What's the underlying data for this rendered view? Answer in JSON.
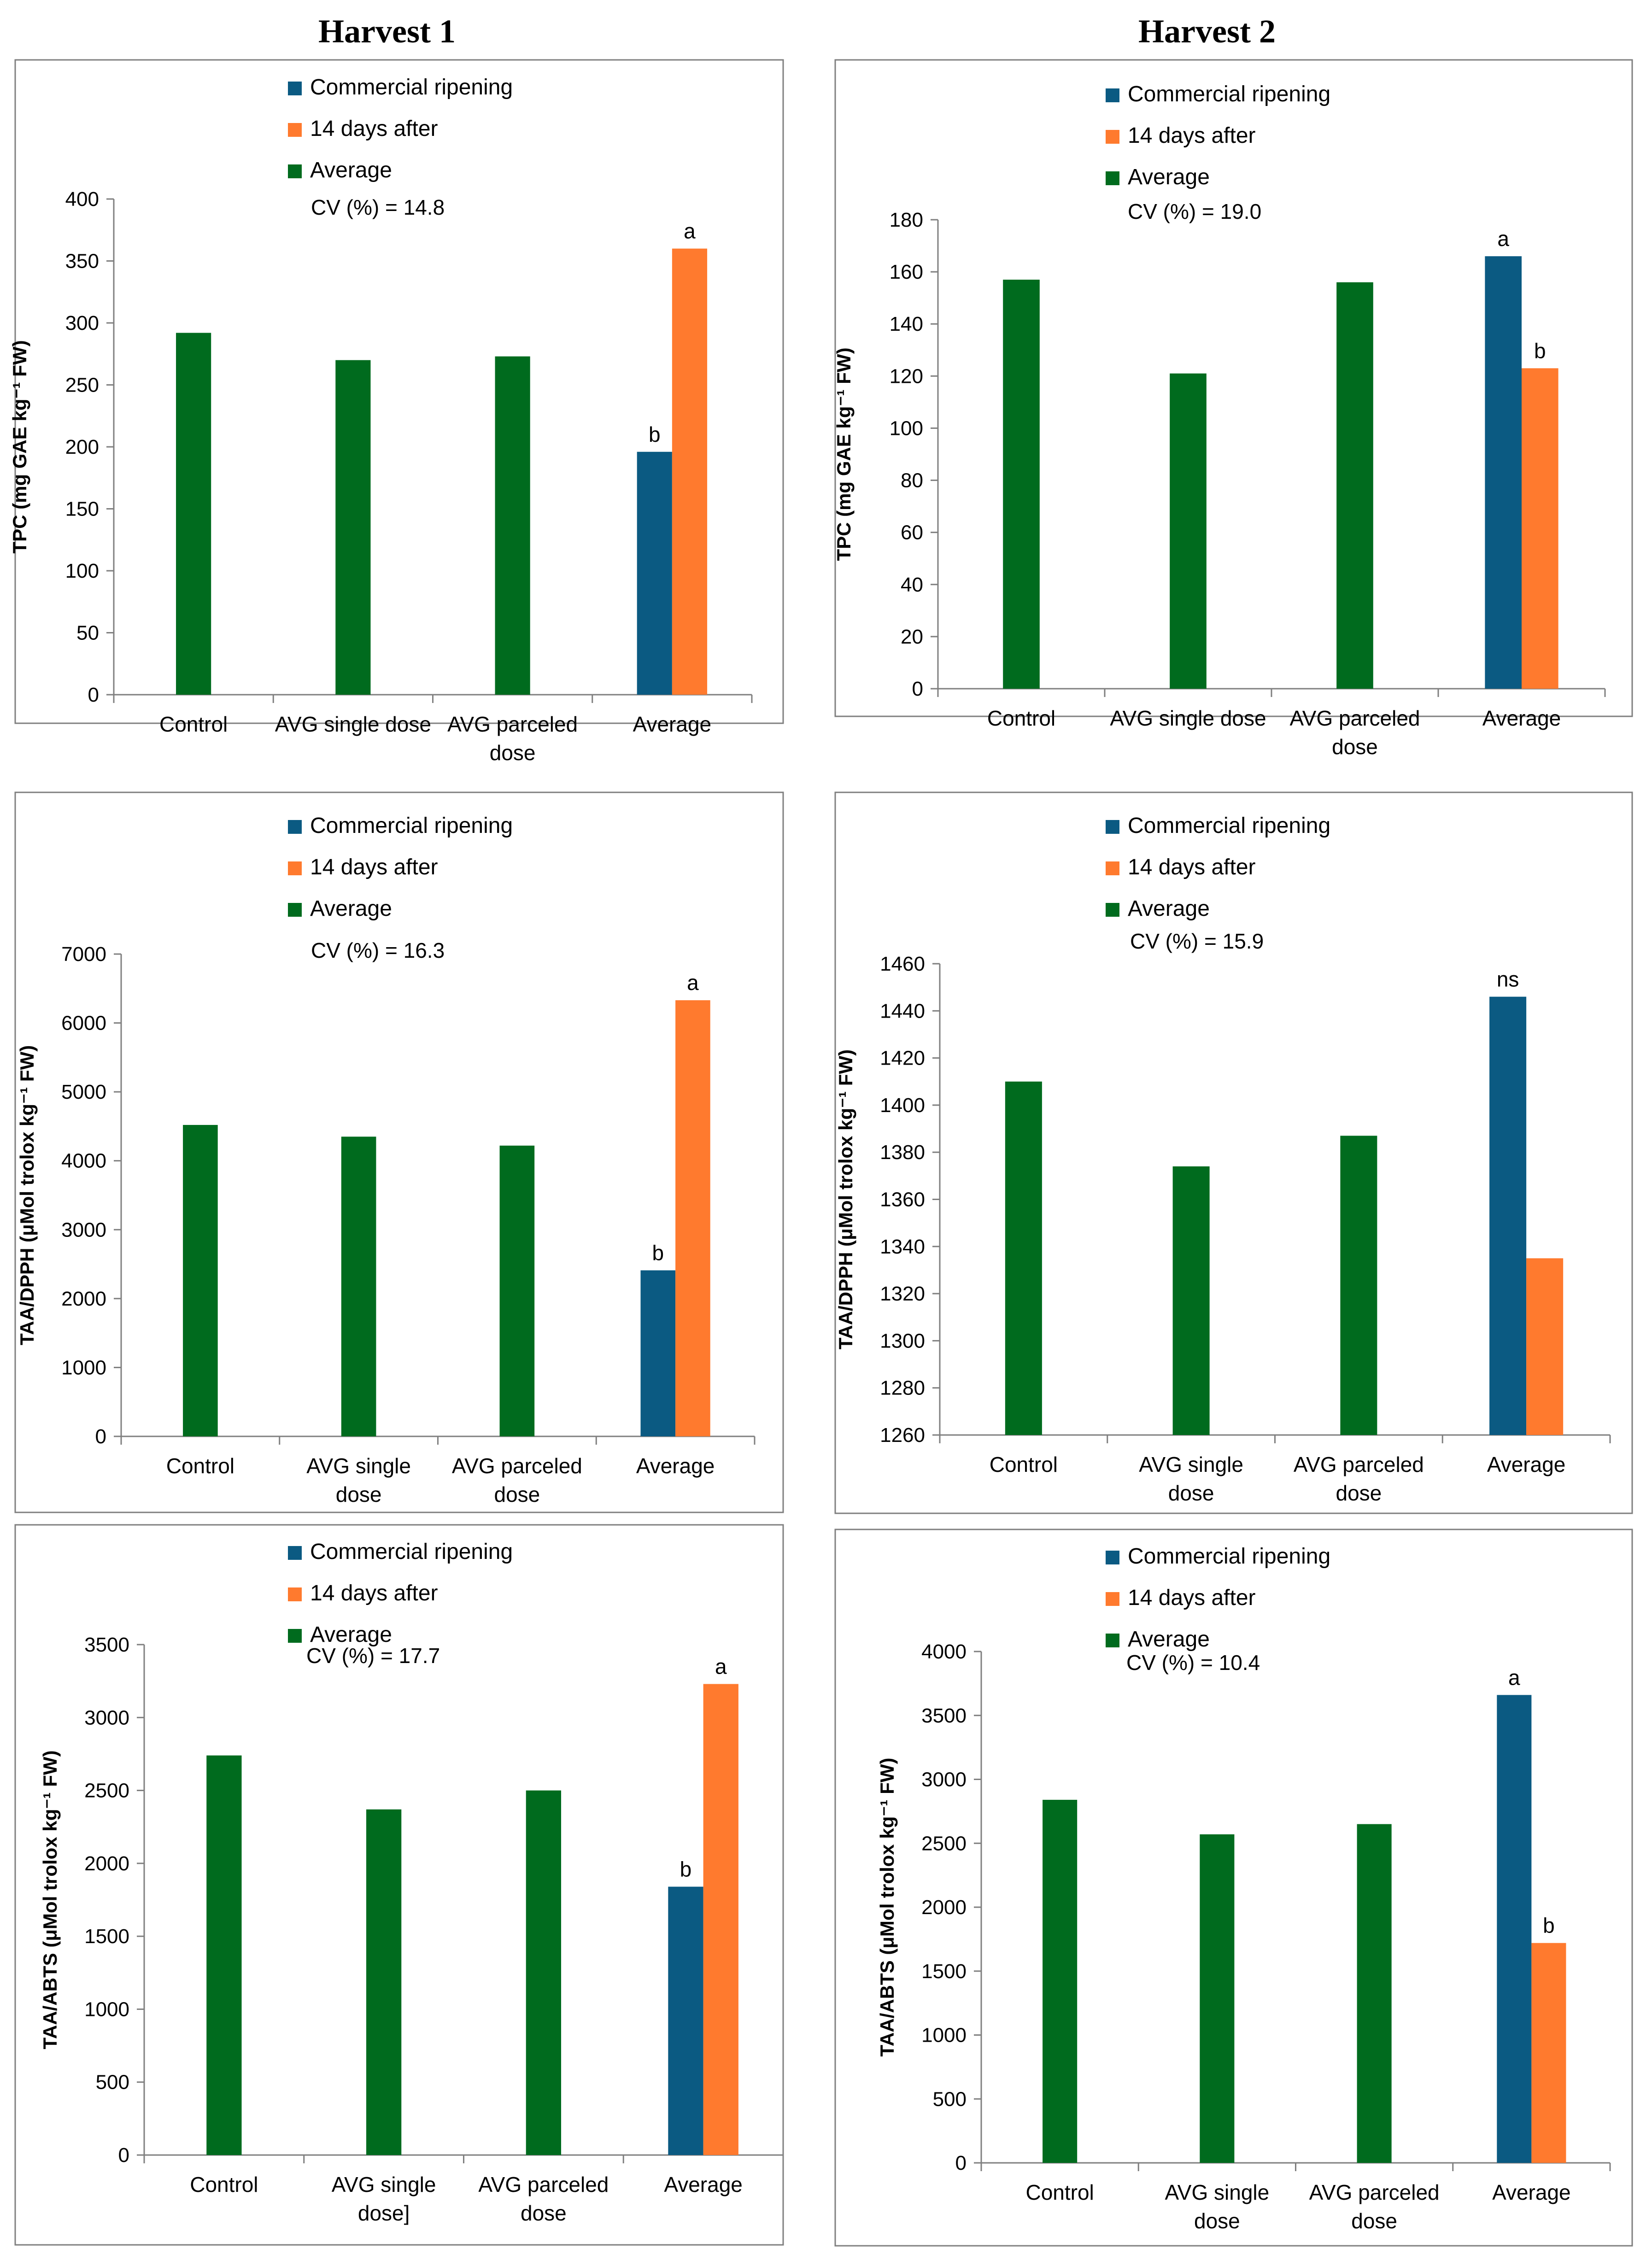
{
  "headings": [
    "Harvest 1",
    "Harvest 2"
  ],
  "legend": {
    "labels": [
      "Commercial ripening",
      "14 days after",
      "Average"
    ],
    "colors": {
      "commercial": "#0B5A82",
      "after14": "#FF7A2E",
      "average": "#006B1E"
    }
  },
  "chart_data": [
    {
      "id": "h1-tpc",
      "type": "bar",
      "ylabel": "TPC (mg GAE kg⁻¹ FW)",
      "cv": "CV (%) = 14.8",
      "ylim": [
        0,
        400
      ],
      "yticks": [
        0,
        50,
        100,
        150,
        200,
        250,
        300,
        350,
        400
      ],
      "categories": [
        [
          "Control"
        ],
        [
          "AVG single dose"
        ],
        [
          "AVG parceled",
          "dose"
        ],
        [
          "Average"
        ]
      ],
      "treatment_values": [
        292,
        270,
        273
      ],
      "average_bars": [
        {
          "series": "Commercial ripening",
          "value": 196,
          "label": "b"
        },
        {
          "series": "14 days after",
          "value": 360,
          "label": "a"
        }
      ]
    },
    {
      "id": "h2-tpc",
      "type": "bar",
      "ylabel": "TPC (mg GAE kg⁻¹ FW)",
      "cv": "CV (%) = 19.0",
      "ylim": [
        0,
        180
      ],
      "yticks": [
        0,
        20,
        40,
        60,
        80,
        100,
        120,
        140,
        160,
        180
      ],
      "categories": [
        [
          "Control"
        ],
        [
          "AVG single dose"
        ],
        [
          "AVG parceled",
          "dose"
        ],
        [
          "Average"
        ]
      ],
      "treatment_values": [
        157,
        121,
        156
      ],
      "average_bars": [
        {
          "series": "Commercial ripening",
          "value": 166,
          "label": "a"
        },
        {
          "series": "14 days after",
          "value": 123,
          "label": "b"
        }
      ]
    },
    {
      "id": "h1-dpph",
      "type": "bar",
      "ylabel": "TAA/DPPH (μMol trolox kg⁻¹ FW)",
      "cv": "CV (%) = 16.3",
      "ylim": [
        0,
        7000
      ],
      "yticks": [
        0,
        1000,
        2000,
        3000,
        4000,
        5000,
        6000,
        7000
      ],
      "categories": [
        [
          "Control"
        ],
        [
          "AVG single",
          "dose"
        ],
        [
          "AVG parceled",
          "dose"
        ],
        [
          "Average"
        ]
      ],
      "treatment_values": [
        4520,
        4350,
        4220
      ],
      "average_bars": [
        {
          "series": "Commercial ripening",
          "value": 2410,
          "label": "b"
        },
        {
          "series": "14 days after",
          "value": 6330,
          "label": "a"
        }
      ]
    },
    {
      "id": "h2-dpph",
      "type": "bar",
      "ylabel": "TAA/DPPH (μMol trolox kg⁻¹ FW)",
      "cv": "CV (%) = 15.9",
      "ylim": [
        1260,
        1460
      ],
      "yticks": [
        1260,
        1280,
        1300,
        1320,
        1340,
        1360,
        1380,
        1400,
        1420,
        1440,
        1460
      ],
      "categories": [
        [
          "Control"
        ],
        [
          "AVG single",
          "dose"
        ],
        [
          "AVG parceled",
          "dose"
        ],
        [
          "Average"
        ]
      ],
      "treatment_values": [
        1410,
        1374,
        1387
      ],
      "average_bars": [
        {
          "series": "Commercial ripening",
          "value": 1446,
          "label": "ns"
        },
        {
          "series": "14 days after",
          "value": 1335,
          "label": ""
        }
      ]
    },
    {
      "id": "h1-abts",
      "type": "bar",
      "ylabel": "TAA/ABTS (μMol trolox kg⁻¹ FW)",
      "cv": "CV (%) = 17.7",
      "ylim": [
        0,
        3500
      ],
      "yticks": [
        0,
        500,
        1000,
        1500,
        2000,
        2500,
        3000,
        3500
      ],
      "categories": [
        [
          "Control"
        ],
        [
          "AVG single",
          "dose]"
        ],
        [
          "AVG parceled",
          "dose"
        ],
        [
          "Average"
        ]
      ],
      "treatment_values": [
        2740,
        2370,
        2500
      ],
      "average_bars": [
        {
          "series": "Commercial ripening",
          "value": 1840,
          "label": "b"
        },
        {
          "series": "14 days after",
          "value": 3230,
          "label": "a"
        }
      ]
    },
    {
      "id": "h2-abts",
      "type": "bar",
      "ylabel": "TAA/ABTS (μMol trolox kg⁻¹ FW)",
      "cv": "CV (%) = 10.4",
      "ylim": [
        0,
        4000
      ],
      "yticks": [
        0,
        500,
        1000,
        1500,
        2000,
        2500,
        3000,
        3500,
        4000
      ],
      "categories": [
        [
          "Control"
        ],
        [
          "AVG single",
          "dose"
        ],
        [
          "AVG parceled",
          "dose"
        ],
        [
          "Average"
        ]
      ],
      "treatment_values": [
        2840,
        2570,
        2650
      ],
      "average_bars": [
        {
          "series": "Commercial ripening",
          "value": 3660,
          "label": "a"
        },
        {
          "series": "14 days after",
          "value": 1720,
          "label": "b"
        }
      ]
    }
  ]
}
